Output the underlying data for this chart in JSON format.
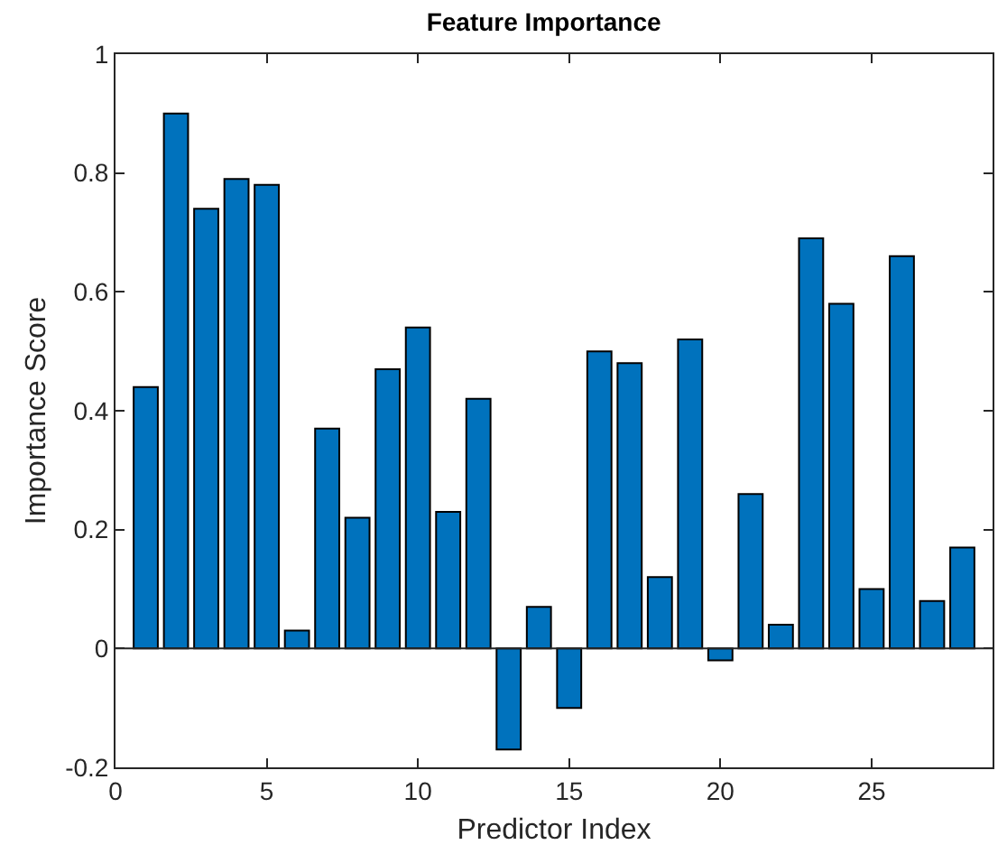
{
  "chart_data": {
    "type": "bar",
    "title": "Feature Importance",
    "xlabel": "Predictor Index",
    "ylabel": "Importance Score",
    "x": [
      1,
      2,
      3,
      4,
      5,
      6,
      7,
      8,
      9,
      10,
      11,
      12,
      13,
      14,
      15,
      16,
      17,
      18,
      19,
      20,
      21,
      22,
      23,
      24,
      25,
      26,
      27,
      28
    ],
    "values": [
      0.44,
      0.9,
      0.74,
      0.79,
      0.78,
      0.03,
      0.37,
      0.22,
      0.47,
      0.54,
      0.23,
      0.42,
      -0.17,
      0.07,
      -0.1,
      0.5,
      0.48,
      0.12,
      0.52,
      -0.02,
      0.26,
      0.04,
      0.69,
      0.58,
      0.1,
      0.66,
      0.08,
      0.17
    ],
    "color": "#0072bd",
    "xlim": [
      0,
      29
    ],
    "xticks": [
      0,
      5,
      10,
      15,
      20,
      25
    ],
    "ylim": [
      -0.2,
      1
    ],
    "yticks": [
      -0.2,
      0,
      0.2,
      0.4,
      0.6,
      0.8,
      1
    ],
    "ref_lines": [
      {
        "axis": "y",
        "value": 0,
        "color": "#262626",
        "line_style": "solid"
      }
    ]
  }
}
